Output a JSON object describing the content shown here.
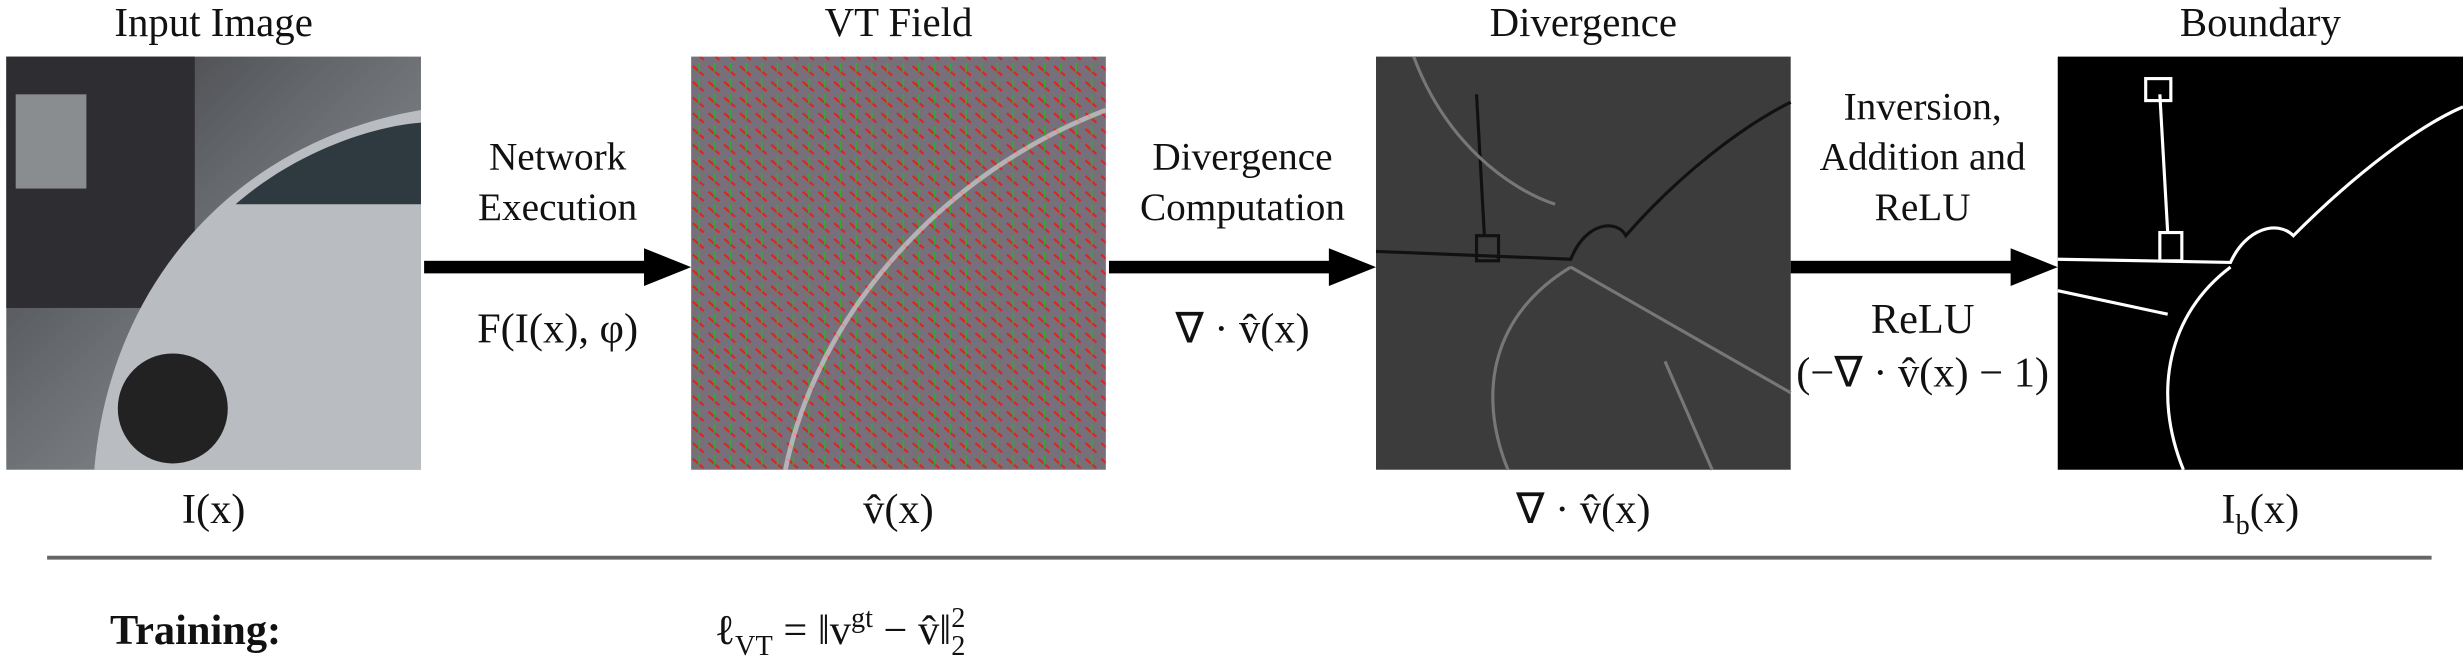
{
  "panels": [
    {
      "title": "Input Image",
      "label": [
        {
          "t": "I(x)"
        }
      ]
    },
    {
      "title": "VT Field",
      "label": [
        {
          "t": "v̂(x)"
        }
      ]
    },
    {
      "title": "Divergence",
      "label": [
        {
          "t": "∇ · v̂(x)"
        }
      ]
    },
    {
      "title": "Boundary",
      "label": [
        {
          "t": "I"
        },
        {
          "t": "b",
          "sub": true
        },
        {
          "t": "(x)"
        }
      ]
    }
  ],
  "arrows": [
    {
      "caption": [
        "Network",
        "Execution"
      ],
      "formula": [
        [
          {
            "t": "F(I(x), φ)"
          }
        ]
      ]
    },
    {
      "caption": [
        "Divergence",
        "Computation"
      ],
      "formula": [
        [
          {
            "t": "∇ · v̂(x)"
          }
        ]
      ]
    },
    {
      "caption": [
        "Inversion,",
        "Addition and",
        "ReLU"
      ],
      "formula": [
        [
          {
            "t": "ReLU"
          }
        ],
        [
          {
            "t": "(−∇ · v̂(x) − 1)"
          }
        ]
      ]
    }
  ],
  "training": {
    "label": "Training:",
    "formula": [
      {
        "t": "ℓ"
      },
      {
        "t": "VT",
        "sub": true
      },
      {
        "t": " = ‖v"
      },
      {
        "t": "gt",
        "sup": true
      },
      {
        "t": " − v̂‖"
      },
      {
        "t": "2",
        "sup": true
      },
      {
        "t": "2",
        "sub": true
      }
    ]
  }
}
